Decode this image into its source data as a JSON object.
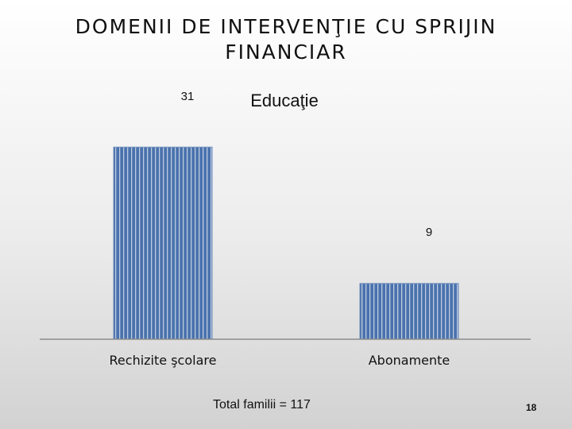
{
  "slide": {
    "title": "DOMENII DE INTERVENŢIE CU SPRIJIN FINANCIAR",
    "footer": "Total familii = 117",
    "page_number": "18"
  },
  "chart_data": {
    "type": "bar",
    "title": "Educaţie",
    "categories": [
      "Rechizite şcolare",
      "Abonamente"
    ],
    "series": [
      {
        "values": [
          31,
          9
        ]
      }
    ],
    "data_labels": [
      "31",
      "9"
    ],
    "bar_color": "#4a72ad",
    "grid": false,
    "legend": "none"
  }
}
